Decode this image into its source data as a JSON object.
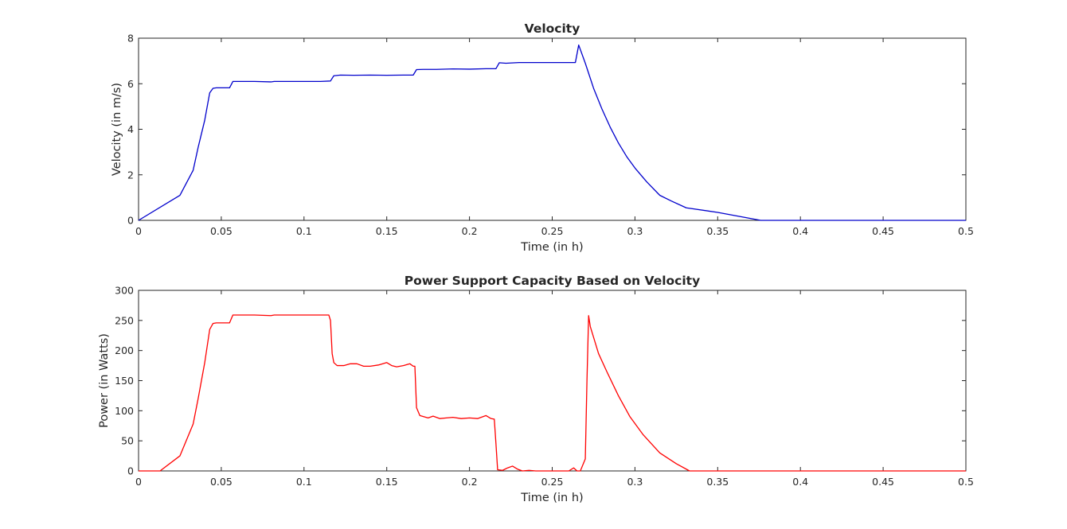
{
  "chart_data": [
    {
      "type": "line",
      "title": "Velocity",
      "xlabel": "Time (in h)",
      "ylabel": "Velocity (in m/s)",
      "xlim": [
        0,
        0.5
      ],
      "ylim": [
        0,
        8
      ],
      "xticks": [
        0,
        0.05,
        0.1,
        0.15,
        0.2,
        0.25,
        0.3,
        0.35,
        0.4,
        0.45,
        0.5
      ],
      "xtick_labels": [
        "0",
        "0.05",
        "0.1",
        "0.15",
        "0.2",
        "0.25",
        "0.3",
        "0.35",
        "0.4",
        "0.45",
        "0.5"
      ],
      "yticks": [
        0,
        2,
        4,
        6,
        8
      ],
      "ytick_labels": [
        "0",
        "2",
        "4",
        "6",
        "8"
      ],
      "grid": false,
      "series": [
        {
          "color": "#0000cc",
          "x": [
            0,
            0.025,
            0.033,
            0.036,
            0.04,
            0.043,
            0.045,
            0.047,
            0.05,
            0.055,
            0.057,
            0.06,
            0.07,
            0.08,
            0.082,
            0.09,
            0.1,
            0.11,
            0.116,
            0.118,
            0.122,
            0.13,
            0.14,
            0.15,
            0.16,
            0.166,
            0.168,
            0.172,
            0.18,
            0.19,
            0.2,
            0.21,
            0.216,
            0.218,
            0.222,
            0.23,
            0.24,
            0.25,
            0.26,
            0.264,
            0.266,
            0.27,
            0.275,
            0.28,
            0.285,
            0.29,
            0.295,
            0.3,
            0.307,
            0.315,
            0.322,
            0.331,
            0.35,
            0.376,
            0.4,
            0.45,
            0.5
          ],
          "y": [
            0,
            1.1,
            2.2,
            3.2,
            4.4,
            5.6,
            5.8,
            5.82,
            5.82,
            5.82,
            6.1,
            6.1,
            6.1,
            6.08,
            6.1,
            6.1,
            6.1,
            6.1,
            6.12,
            6.35,
            6.38,
            6.37,
            6.38,
            6.37,
            6.38,
            6.38,
            6.62,
            6.63,
            6.63,
            6.65,
            6.64,
            6.66,
            6.66,
            6.92,
            6.9,
            6.93,
            6.93,
            6.93,
            6.93,
            6.93,
            7.7,
            6.9,
            5.8,
            4.9,
            4.1,
            3.4,
            2.8,
            2.3,
            1.7,
            1.1,
            0.85,
            0.55,
            0.35,
            0,
            0,
            0,
            0
          ]
        }
      ]
    },
    {
      "type": "line",
      "title": "Power Support Capacity Based on Velocity",
      "xlabel": "Time (in h)",
      "ylabel": "Power (in Watts)",
      "xlim": [
        0,
        0.5
      ],
      "ylim": [
        0,
        300
      ],
      "xticks": [
        0,
        0.05,
        0.1,
        0.15,
        0.2,
        0.25,
        0.3,
        0.35,
        0.4,
        0.45,
        0.5
      ],
      "xtick_labels": [
        "0",
        "0.05",
        "0.1",
        "0.15",
        "0.2",
        "0.25",
        "0.3",
        "0.35",
        "0.4",
        "0.45",
        "0.5"
      ],
      "yticks": [
        0,
        50,
        100,
        150,
        200,
        250,
        300
      ],
      "ytick_labels": [
        "0",
        "50",
        "100",
        "150",
        "200",
        "250",
        "300"
      ],
      "grid": false,
      "series": [
        {
          "color": "#ff0000",
          "x": [
            0,
            0.013,
            0.025,
            0.033,
            0.036,
            0.04,
            0.043,
            0.045,
            0.047,
            0.05,
            0.055,
            0.057,
            0.06,
            0.07,
            0.08,
            0.082,
            0.09,
            0.1,
            0.11,
            0.115,
            0.116,
            0.117,
            0.118,
            0.12,
            0.124,
            0.128,
            0.132,
            0.136,
            0.14,
            0.145,
            0.15,
            0.153,
            0.156,
            0.16,
            0.164,
            0.166,
            0.167,
            0.168,
            0.17,
            0.175,
            0.178,
            0.182,
            0.186,
            0.19,
            0.195,
            0.2,
            0.205,
            0.21,
            0.213,
            0.215,
            0.216,
            0.217,
            0.22,
            0.223,
            0.226,
            0.229,
            0.232,
            0.236,
            0.24,
            0.245,
            0.25,
            0.255,
            0.26,
            0.263,
            0.265,
            0.267,
            0.27,
            0.271,
            0.272,
            0.273,
            0.278,
            0.283,
            0.29,
            0.297,
            0.305,
            0.315,
            0.325,
            0.333,
            0.35,
            0.4,
            0.45,
            0.5
          ],
          "y": [
            0,
            0,
            25,
            78,
            120,
            180,
            235,
            245,
            246,
            246,
            246,
            259,
            259,
            259,
            258,
            259,
            259,
            259,
            259,
            259,
            250,
            195,
            180,
            175,
            175,
            178,
            178,
            174,
            174,
            176,
            180,
            175,
            173,
            175,
            178,
            174,
            174,
            105,
            92,
            88,
            91,
            87,
            88,
            89,
            87,
            88,
            87,
            92,
            87,
            86,
            45,
            2,
            1,
            5,
            8,
            3,
            0,
            1,
            0,
            0,
            0,
            0,
            0,
            5,
            0,
            0,
            20,
            150,
            258,
            240,
            195,
            165,
            125,
            90,
            60,
            30,
            12,
            0,
            0,
            0,
            0,
            0
          ]
        }
      ]
    }
  ]
}
